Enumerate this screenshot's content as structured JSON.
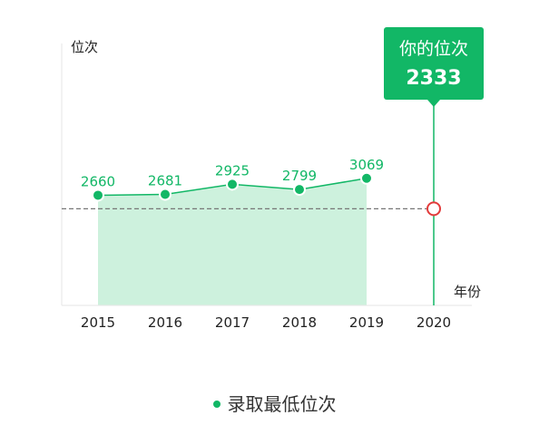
{
  "chart_data": {
    "type": "line",
    "ylabel": "位次",
    "xlabel": "年份",
    "categories": [
      "2015",
      "2016",
      "2017",
      "2018",
      "2019",
      "2020"
    ],
    "series": [
      {
        "name": "录取最低位次",
        "values": [
          2660,
          2681,
          2925,
          2799,
          3069,
          null
        ],
        "color": "#12b766"
      }
    ],
    "ylim": [
      0,
      6500
    ],
    "area_fill": "#cdf1dd",
    "reference": {
      "value": 2333,
      "category": "2020",
      "title": "你的位次",
      "marker_color": "#e23b3b",
      "line_style": "dashed"
    },
    "legend_position": "bottom-center",
    "grid": false
  },
  "legend": {
    "label": "录取最低位次"
  }
}
